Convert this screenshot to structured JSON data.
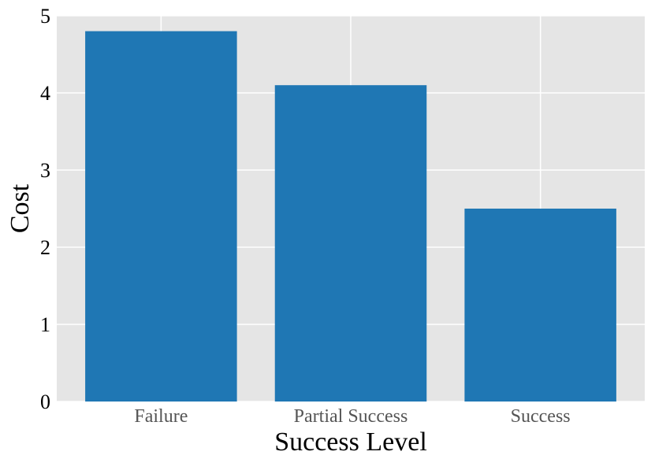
{
  "chart_data": {
    "type": "bar",
    "title": "",
    "xlabel": "Success Level",
    "ylabel": "Cost",
    "categories": [
      "Failure",
      "Partial Success",
      "Success"
    ],
    "values": [
      4.8,
      4.1,
      2.5
    ],
    "ylim": [
      0,
      5
    ],
    "yticks": [
      "0",
      "1",
      "2",
      "3",
      "4",
      "5"
    ],
    "grid": true,
    "colors": {
      "bar": "#1f77b4",
      "plot_background": "#e5e5e5",
      "grid": "#ffffff"
    }
  }
}
